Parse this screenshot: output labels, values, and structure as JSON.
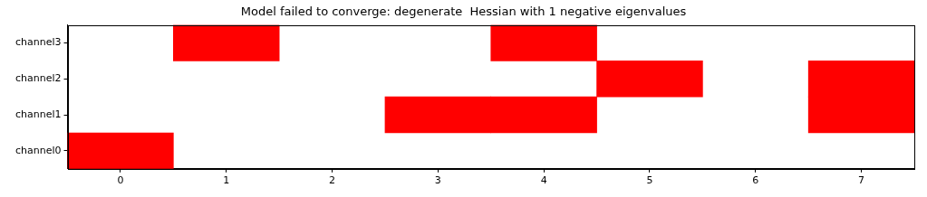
{
  "chart_data": {
    "type": "heatmap",
    "title": "Model failed to converge: degenerate  Hessian with 1 negative eigenvalues",
    "x": [
      0,
      1,
      2,
      3,
      4,
      5,
      6,
      7
    ],
    "categories": [
      "channel0",
      "channel1",
      "channel2",
      "channel3"
    ],
    "cells": [
      [
        1,
        0,
        0,
        0,
        0,
        0,
        0,
        0
      ],
      [
        0,
        0,
        0,
        1,
        1,
        0,
        0,
        1
      ],
      [
        0,
        0,
        0,
        0,
        0,
        1,
        0,
        1
      ],
      [
        0,
        1,
        0,
        0,
        1,
        0,
        0,
        0
      ]
    ],
    "color": "#ff0000",
    "xlim": [
      -0.5,
      7.5
    ],
    "xticks": [
      0,
      1,
      2,
      3,
      4,
      5,
      6,
      7
    ],
    "grid": false
  }
}
